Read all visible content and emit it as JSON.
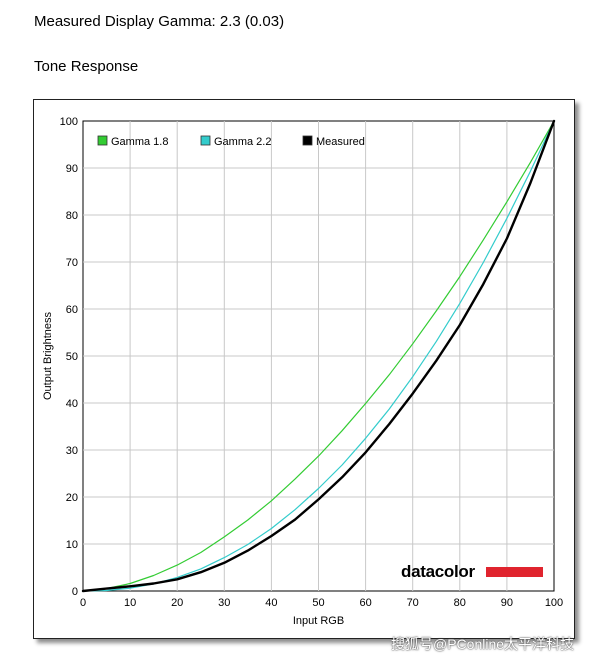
{
  "page": {
    "heading": "Measured Display Gamma: 2.3 (0.03)",
    "subheading": "Tone Response",
    "watermark": "搜狐号@PConline太平洋科技"
  },
  "chart_data": {
    "type": "line",
    "title": "",
    "xlabel": "Input RGB",
    "ylabel": "Output Brightness",
    "xlim": [
      0,
      100
    ],
    "ylim": [
      0,
      100
    ],
    "xticks": [
      0,
      10,
      20,
      30,
      40,
      50,
      60,
      70,
      80,
      90,
      100
    ],
    "yticks": [
      0,
      10,
      20,
      30,
      40,
      50,
      60,
      70,
      80,
      90,
      100
    ],
    "grid": true,
    "legend_position": "top-left",
    "x": [
      0,
      5,
      10,
      15,
      20,
      25,
      30,
      35,
      40,
      45,
      50,
      55,
      60,
      65,
      70,
      75,
      80,
      85,
      90,
      95,
      100
    ],
    "series": [
      {
        "name": "Gamma 1.8",
        "color": "#33cc33",
        "values": [
          0,
          0.5,
          1.6,
          3.3,
          5.5,
          8.2,
          11.5,
          15.1,
          19.2,
          23.8,
          28.7,
          34.1,
          39.9,
          46.0,
          52.6,
          59.6,
          66.9,
          74.7,
          82.8,
          91.2,
          100
        ]
      },
      {
        "name": "Gamma 2.2",
        "color": "#33cccc",
        "values": [
          0,
          0.1,
          0.6,
          1.5,
          2.9,
          4.7,
          7.1,
          9.9,
          13.3,
          17.3,
          21.8,
          26.8,
          32.5,
          38.7,
          45.6,
          53.1,
          61.2,
          69.9,
          79.3,
          89.3,
          100
        ]
      },
      {
        "name": "Measured",
        "color": "#000000",
        "values": [
          0,
          0.5,
          1.0,
          1.6,
          2.5,
          4.0,
          6.0,
          8.6,
          11.7,
          15.2,
          19.5,
          24.2,
          29.5,
          35.5,
          42.0,
          49.0,
          56.6,
          65.3,
          75.0,
          86.8,
          100
        ]
      }
    ],
    "logo": {
      "text": "datacolor",
      "bar_color": "#e0242e"
    }
  }
}
